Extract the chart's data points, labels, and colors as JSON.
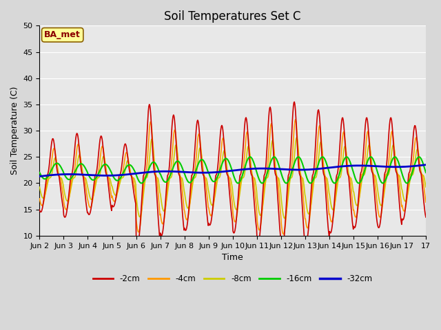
{
  "title": "Soil Temperatures Set C",
  "xlabel": "Time",
  "ylabel": "Soil Temperature (C)",
  "ylim": [
    10,
    50
  ],
  "yticks": [
    10,
    15,
    20,
    25,
    30,
    35,
    40,
    45,
    50
  ],
  "xtick_labels": [
    "Jun 2",
    "Jun 3",
    "Jun 4",
    "Jun 5",
    "Jun 6",
    "Jun 7",
    "Jun 8",
    "Jun 9",
    "Jun 10",
    "Jun 11",
    "Jun 12",
    "Jun 13",
    "Jun 14",
    "Jun 15",
    "Jun 16",
    "Jun 17"
  ],
  "legend_labels": [
    "-2cm",
    "-4cm",
    "-8cm",
    "-16cm",
    "-32cm"
  ],
  "legend_colors": [
    "#cc0000",
    "#ff9900",
    "#cccc00",
    "#00cc00",
    "#0000cc"
  ],
  "line_widths": [
    1.2,
    1.2,
    1.2,
    1.5,
    2.0
  ],
  "annotation_text": "BA_met",
  "bg_color": "#e8e8e8",
  "grid_color": "#ffffff",
  "title_fontsize": 12,
  "axis_label_fontsize": 9,
  "tick_fontsize": 8
}
